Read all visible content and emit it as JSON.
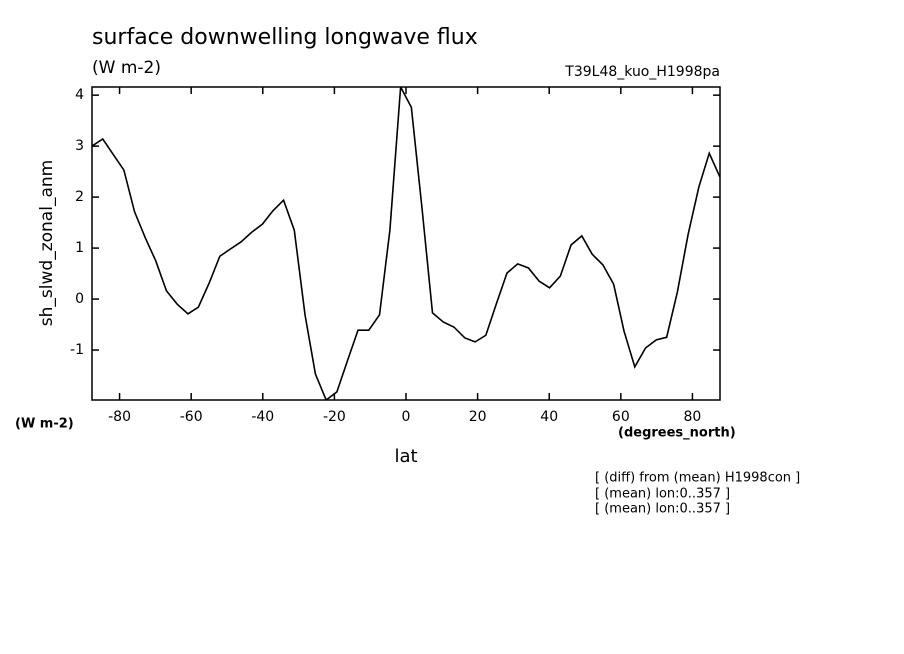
{
  "chart_data": {
    "type": "line",
    "title": "surface downwelling longwave flux",
    "subtitle": "(W m-2)",
    "experiment": "T39L48_kuo_H1998pa",
    "y_label": "sh_slwd_zonal_anm",
    "y_units": "(W m-2)",
    "x_units": "(degrees_north)",
    "x_label": "lat",
    "notes": [
      "[ (diff) from (mean) H1998con ]",
      "[ (mean) lon:0..357 ]",
      "[ (mean) lon:0..357 ]"
    ],
    "x": [
      -87.7,
      -84.7,
      -81.8,
      -78.8,
      -75.8,
      -72.8,
      -69.9,
      -66.9,
      -63.9,
      -60.9,
      -58.0,
      -55.0,
      -52.0,
      -49.1,
      -46.1,
      -43.1,
      -40.1,
      -37.2,
      -34.2,
      -31.2,
      -28.2,
      -25.3,
      -22.3,
      -19.3,
      -16.4,
      -13.4,
      -10.4,
      -7.4,
      -4.5,
      -1.5,
      1.5,
      4.5,
      7.4,
      10.4,
      13.4,
      16.4,
      19.3,
      22.3,
      25.3,
      28.2,
      31.2,
      34.2,
      37.2,
      40.1,
      43.1,
      46.1,
      49.1,
      52.0,
      55.0,
      58.0,
      60.9,
      63.9,
      66.9,
      69.9,
      72.8,
      75.8,
      78.8,
      81.8,
      84.7,
      87.7
    ],
    "series": [
      {
        "color": "#000000",
        "values": [
          3.0,
          3.14,
          2.84,
          2.53,
          1.71,
          1.2,
          0.75,
          0.16,
          -0.1,
          -0.29,
          -0.16,
          0.31,
          0.84,
          0.98,
          1.12,
          1.31,
          1.47,
          1.73,
          1.94,
          1.35,
          -0.31,
          -1.47,
          -1.98,
          -1.82,
          -1.22,
          -0.61,
          -0.61,
          -0.31,
          1.35,
          4.16,
          3.76,
          1.76,
          -0.27,
          -0.45,
          -0.55,
          -0.76,
          -0.84,
          -0.71,
          -0.08,
          0.51,
          0.69,
          0.61,
          0.35,
          0.22,
          0.45,
          1.06,
          1.24,
          0.88,
          0.67,
          0.29,
          -0.63,
          -1.33,
          -0.96,
          -0.8,
          -0.75,
          0.14,
          1.27,
          2.2,
          2.86,
          2.39
        ]
      }
    ],
    "xlim": [
      -87.7,
      87.7
    ],
    "ylim": [
      -1.98,
      4.16
    ],
    "xticks": [
      -80,
      -60,
      -40,
      -20,
      0,
      20,
      40,
      60,
      80
    ],
    "yticks": [
      -1,
      0,
      1,
      2,
      3,
      4
    ]
  }
}
